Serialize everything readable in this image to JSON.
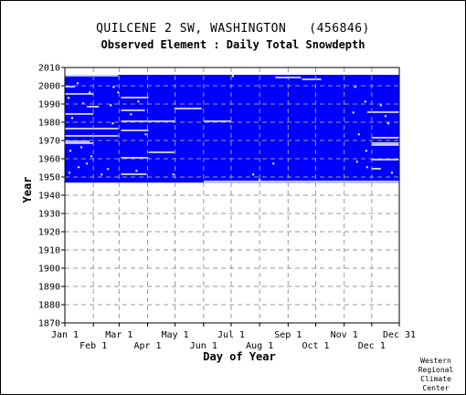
{
  "chart_data": {
    "type": "heatmap",
    "title": "QUILCENE 2 SW, WASHINGTON   (456846)",
    "subtitle": "Observed Element : Daily Total Snowdepth",
    "xlabel": "Day of Year",
    "ylabel": "Year",
    "xlim": [
      1,
      365
    ],
    "ylim": [
      1870,
      2010
    ],
    "grid": true,
    "y_ticks": [
      1870,
      1880,
      1890,
      1900,
      1910,
      1920,
      1930,
      1940,
      1950,
      1960,
      1970,
      1980,
      1990,
      2000,
      2010
    ],
    "x_ticks_upper": [
      {
        "label": "Jan 1",
        "day": 1
      },
      {
        "label": "Mar 1",
        "day": 60
      },
      {
        "label": "May 1",
        "day": 121
      },
      {
        "label": "Jul 1",
        "day": 182
      },
      {
        "label": "Sep 1",
        "day": 244
      },
      {
        "label": "Nov 1",
        "day": 305
      },
      {
        "label": "Dec 31",
        "day": 365
      }
    ],
    "x_ticks_lower": [
      {
        "label": "Feb 1",
        "day": 32
      },
      {
        "label": "Apr 1",
        "day": 91
      },
      {
        "label": "Jun 1",
        "day": 152
      },
      {
        "label": "Aug 1",
        "day": 213
      },
      {
        "label": "Oct 1",
        "day": 274
      },
      {
        "label": "Dec 1",
        "day": 335
      }
    ],
    "data_color": "#0000ff",
    "data_start_year": 1947,
    "data_end_year": 2005,
    "gaps": [
      {
        "year": 2005,
        "from": 1,
        "to": 59
      },
      {
        "year": 2004,
        "from": 230,
        "to": 258
      },
      {
        "year": 2003,
        "from": 259,
        "to": 280
      },
      {
        "year": 1999,
        "from": 1,
        "to": 12
      },
      {
        "year": 1995,
        "from": 1,
        "to": 32
      },
      {
        "year": 1993,
        "from": 62,
        "to": 92
      },
      {
        "year": 1988,
        "from": 25,
        "to": 38
      },
      {
        "year": 1987,
        "from": 120,
        "to": 150
      },
      {
        "year": 1986,
        "from": 62,
        "to": 88
      },
      {
        "year": 1985,
        "from": 330,
        "to": 365
      },
      {
        "year": 1984,
        "from": 1,
        "to": 32
      },
      {
        "year": 1980,
        "from": 62,
        "to": 121
      },
      {
        "year": 1980,
        "from": 152,
        "to": 182
      },
      {
        "year": 1976,
        "from": 1,
        "to": 59
      },
      {
        "year": 1975,
        "from": 62,
        "to": 92
      },
      {
        "year": 1972,
        "from": 1,
        "to": 59
      },
      {
        "year": 1971,
        "from": 335,
        "to": 365
      },
      {
        "year": 1969,
        "from": 1,
        "to": 28
      },
      {
        "year": 1968,
        "from": 1,
        "to": 32
      },
      {
        "year": 1968,
        "from": 335,
        "to": 365
      },
      {
        "year": 1967,
        "from": 335,
        "to": 365
      },
      {
        "year": 1963,
        "from": 92,
        "to": 120
      },
      {
        "year": 1960,
        "from": 62,
        "to": 92
      },
      {
        "year": 1959,
        "from": 335,
        "to": 365
      },
      {
        "year": 1954,
        "from": 335,
        "to": 345
      },
      {
        "year": 1951,
        "from": 62,
        "to": 90
      },
      {
        "year": 1947,
        "from": 152,
        "to": 365
      }
    ],
    "specks": [
      {
        "year": 2001,
        "day": 14
      },
      {
        "year": 1996,
        "day": 27
      },
      {
        "year": 1993,
        "day": 4
      },
      {
        "year": 1990,
        "day": 20
      },
      {
        "year": 1989,
        "day": 50
      },
      {
        "year": 1982,
        "day": 8
      },
      {
        "year": 1979,
        "day": 52
      },
      {
        "year": 1966,
        "day": 18
      },
      {
        "year": 1964,
        "day": 6
      },
      {
        "year": 1961,
        "day": 29
      },
      {
        "year": 1957,
        "day": 24
      },
      {
        "year": 1955,
        "day": 15
      },
      {
        "year": 1954,
        "day": 47
      },
      {
        "year": 1951,
        "day": 40
      },
      {
        "year": 1952,
        "day": 5
      },
      {
        "year": 1999,
        "day": 53
      },
      {
        "year": 1996,
        "day": 58
      },
      {
        "year": 1991,
        "day": 80
      },
      {
        "year": 1984,
        "day": 72
      },
      {
        "year": 1973,
        "day": 88
      },
      {
        "year": 1953,
        "day": 78
      },
      {
        "year": 1951,
        "day": 118
      },
      {
        "year": 2005,
        "day": 183
      },
      {
        "year": 1957,
        "day": 227
      },
      {
        "year": 1951,
        "day": 205
      },
      {
        "year": 1948,
        "day": 212
      },
      {
        "year": 1999,
        "day": 316
      },
      {
        "year": 1991,
        "day": 327
      },
      {
        "year": 1989,
        "day": 344
      },
      {
        "year": 1985,
        "day": 314
      },
      {
        "year": 1983,
        "day": 349
      },
      {
        "year": 1979,
        "day": 352
      },
      {
        "year": 1973,
        "day": 320
      },
      {
        "year": 1964,
        "day": 328
      },
      {
        "year": 1958,
        "day": 318
      },
      {
        "year": 1955,
        "day": 329
      },
      {
        "year": 1952,
        "day": 356
      }
    ]
  },
  "credit": [
    "Western",
    "Regional",
    "Climate",
    "Center"
  ]
}
